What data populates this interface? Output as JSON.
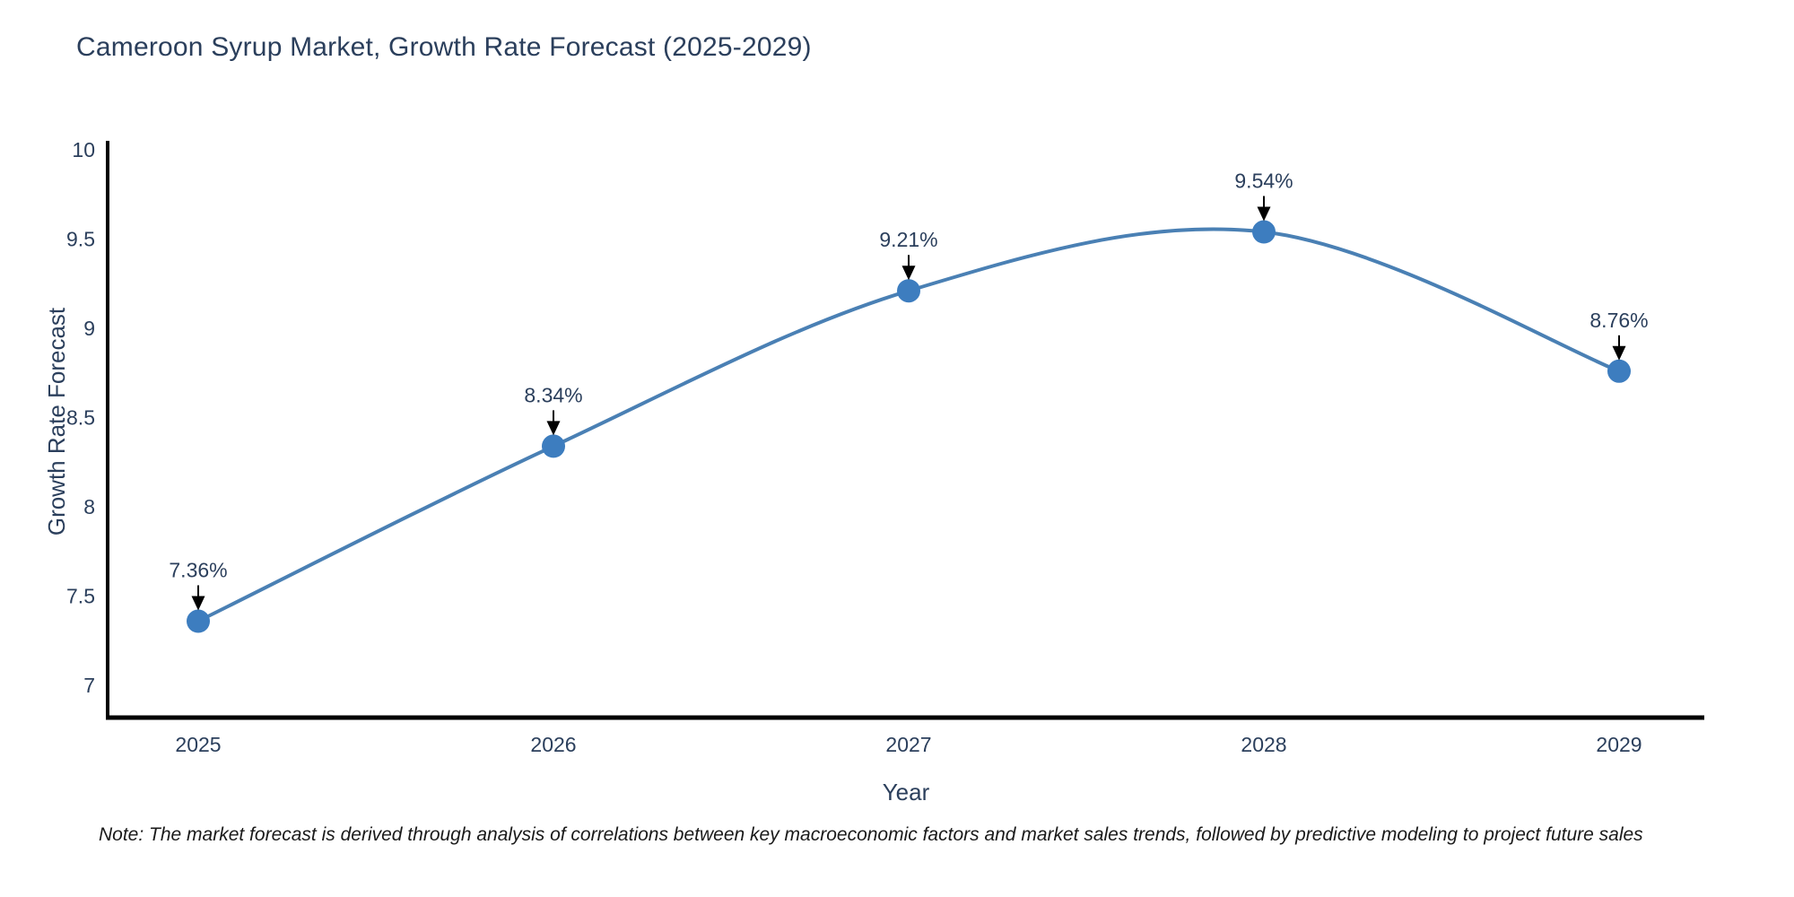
{
  "page": {
    "background_color": "#ffffff"
  },
  "chart_data": {
    "type": "line",
    "line_shape": "spline",
    "title": "Cameroon Syrup Market, Growth Rate Forecast (2025-2029)",
    "xlabel": "Year",
    "ylabel": "Growth Rate Forecast",
    "categories": [
      "2025",
      "2026",
      "2027",
      "2028",
      "2029"
    ],
    "values": [
      7.36,
      8.34,
      9.21,
      9.54,
      8.76
    ],
    "point_labels": [
      "7.36%",
      "8.34%",
      "9.21%",
      "9.54%",
      "8.76%"
    ],
    "yticks": [
      7,
      7.5,
      8,
      8.5,
      9,
      9.5,
      10
    ],
    "ytick_labels": [
      "7",
      "7.5",
      "8",
      "8.5",
      "9",
      "9.5",
      "10"
    ],
    "ylim": [
      6.81,
      10.05
    ],
    "grid": false,
    "legend_position": "none",
    "line_color": "#4a80b4",
    "marker_color": "#3d7dbf",
    "axis_color": "#000000",
    "text_color": "#2b3f5c",
    "annotation_arrow_color": "#000000"
  },
  "note": {
    "text": "Note: The market forecast is derived through analysis of correlations between key macroeconomic factors and market sales trends, followed by predictive modeling to project future sales"
  }
}
